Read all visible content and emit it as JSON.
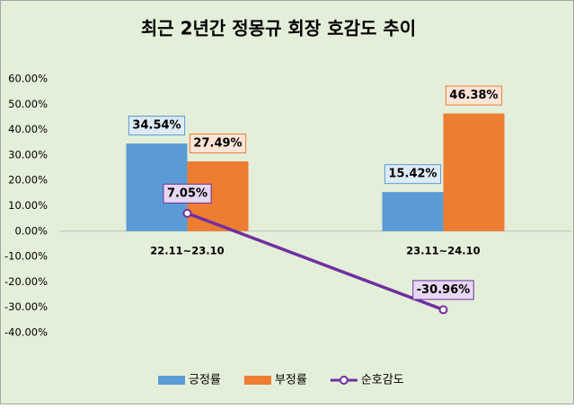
{
  "chart_data": {
    "type": "bar",
    "title": "최근 2년간 정몽규 회장 호감도 추이",
    "categories": [
      "22.11~23.10",
      "23.11~24.10"
    ],
    "series": [
      {
        "name": "긍정률",
        "color": "#5b9bd5",
        "values": [
          34.54,
          15.42
        ],
        "value_labels": [
          "34.54%",
          "15.42%"
        ]
      },
      {
        "name": "부정률",
        "color": "#ed7d31",
        "values": [
          27.49,
          46.38
        ],
        "value_labels": [
          "27.49%",
          "46.38%"
        ]
      },
      {
        "name": "순호감도",
        "type": "line",
        "color": "#7030a0",
        "values": [
          7.05,
          -30.96
        ],
        "value_labels": [
          "7.05%",
          "-30.96%"
        ]
      }
    ],
    "ylim": [
      -40,
      60
    ],
    "yticks": [
      {
        "value": -40,
        "label": "-40.00%"
      },
      {
        "value": -30,
        "label": "-30.00%"
      },
      {
        "value": -20,
        "label": "-20.00%"
      },
      {
        "value": -10,
        "label": "-10.00%"
      },
      {
        "value": 0,
        "label": "0.00%"
      },
      {
        "value": 10,
        "label": "10.00%"
      },
      {
        "value": 20,
        "label": "20.00%"
      },
      {
        "value": 30,
        "label": "30.00%"
      },
      {
        "value": 40,
        "label": "40.00%"
      },
      {
        "value": 50,
        "label": "50.00%"
      },
      {
        "value": 60,
        "label": "60.00%"
      }
    ],
    "grid": false,
    "legend": "bottom"
  }
}
